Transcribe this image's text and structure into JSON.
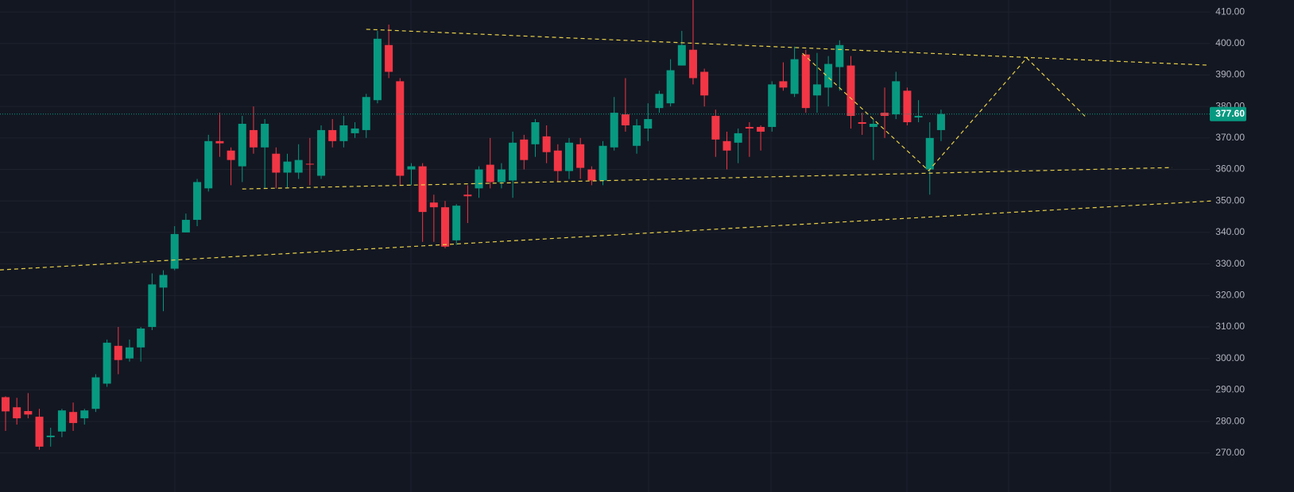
{
  "chart_data": {
    "type": "candlestick",
    "up_color": "#089981",
    "down_color": "#f23645",
    "open": [
      287.7,
      284.5,
      283.3,
      281.5,
      275,
      276.8,
      283,
      281,
      284,
      292,
      304,
      300,
      303.5,
      310,
      322.5,
      328.5,
      340,
      344,
      354,
      369,
      366,
      361,
      372.5,
      367,
      365,
      359,
      359,
      361.8,
      358,
      372.5,
      369,
      371.5,
      372.5,
      382,
      399.5,
      388,
      360,
      361,
      349.5,
      348,
      337.5,
      352,
      354,
      361.5,
      356,
      356.5,
      369.5,
      368,
      370.5,
      366,
      359.5,
      368,
      360,
      356.5,
      367,
      377.5,
      367.5,
      373,
      379.5,
      381,
      393,
      398,
      391,
      377,
      369,
      368.5,
      373.5,
      373.5,
      373.5,
      388,
      384,
      396.5,
      383.5,
      386,
      392.5,
      393,
      375,
      373.5,
      378,
      377.5,
      385,
      376.5,
      360,
      372.5
    ],
    "high": [
      288,
      287.5,
      289,
      284,
      278,
      284,
      286,
      284,
      295,
      306,
      310,
      306,
      310,
      327,
      328,
      342,
      346,
      357,
      371,
      378,
      367,
      377,
      380,
      376,
      367,
      365,
      368,
      370,
      374,
      376,
      377,
      375,
      384,
      404,
      406,
      389,
      362,
      362,
      352,
      350,
      349,
      355,
      361,
      370,
      362,
      372,
      371,
      376,
      374,
      368,
      370,
      370,
      361,
      369,
      383,
      389,
      376,
      381,
      385,
      395,
      404,
      414,
      392,
      379,
      372,
      373,
      375,
      374,
      388,
      394,
      399,
      398,
      397,
      396,
      401,
      396,
      378,
      376,
      386,
      391,
      386,
      382,
      375,
      379
    ],
    "low": [
      277,
      279,
      281,
      271,
      272,
      275,
      277,
      279,
      283,
      291,
      295,
      299,
      299,
      309,
      315,
      328,
      340,
      342,
      353,
      364,
      355,
      356,
      365,
      354,
      354,
      354,
      357,
      355,
      357,
      367,
      367,
      370,
      370,
      381,
      389,
      355,
      355,
      337,
      337,
      335,
      336,
      343,
      351,
      354,
      354,
      351,
      360,
      364,
      362,
      356,
      357,
      357,
      355,
      355,
      366,
      372,
      365,
      369,
      378,
      380,
      393,
      387,
      380,
      364,
      360,
      362,
      364,
      366,
      372,
      385,
      383,
      378,
      378,
      380,
      385,
      373,
      371,
      363,
      370,
      376,
      374,
      375,
      352,
      369
    ],
    "close": [
      283.2,
      281,
      282.2,
      272,
      275.5,
      283.5,
      279.5,
      283.5,
      294,
      305,
      299.5,
      303.5,
      309.5,
      323.5,
      326.5,
      339.5,
      344,
      356,
      369,
      368.3,
      363,
      374.5,
      367,
      374.5,
      359,
      362.5,
      363,
      361.6,
      372.5,
      369,
      374,
      373,
      383,
      401.5,
      391,
      358,
      361,
      346.5,
      348,
      335.5,
      348.5,
      351.5,
      360,
      356,
      360,
      368.5,
      363,
      375,
      365.5,
      359.5,
      368.5,
      360.5,
      356.5,
      367.5,
      378,
      374,
      374,
      376,
      384,
      391.5,
      399.5,
      389,
      383.5,
      369.5,
      366,
      371.5,
      373,
      372,
      387,
      386,
      395,
      379.5,
      387,
      393.5,
      399.5,
      377,
      374.5,
      374.5,
      377,
      388,
      375,
      377,
      370,
      377.6
    ],
    "ylim": [
      257.6,
      413.8
    ],
    "yticks": [
      {
        "value": 270,
        "label": "270.00"
      },
      {
        "value": 280,
        "label": "280.00"
      },
      {
        "value": 290,
        "label": "290.00"
      },
      {
        "value": 300,
        "label": "300.00"
      },
      {
        "value": 310,
        "label": "310.00"
      },
      {
        "value": 320,
        "label": "320.00"
      },
      {
        "value": 330,
        "label": "330.00"
      },
      {
        "value": 340,
        "label": "340.00"
      },
      {
        "value": 350,
        "label": "350.00"
      },
      {
        "value": 360,
        "label": "360.00"
      },
      {
        "value": 370,
        "label": "370.00"
      },
      {
        "value": 380,
        "label": "380.00"
      },
      {
        "value": 390,
        "label": "390.00"
      },
      {
        "value": 400,
        "label": "400.00"
      },
      {
        "value": 410,
        "label": "410.00"
      }
    ],
    "grid": true,
    "last_price": {
      "value": 377.6,
      "label": "377.60",
      "color": "#089981"
    },
    "trendline_color": "#e8d04a",
    "trendlines": [
      {
        "x": [
          32.0,
          106.8
        ],
        "y": [
          404.5,
          393.1
        ]
      },
      {
        "x": [
          21.0,
          103.5
        ],
        "y": [
          353.8,
          360.6
        ]
      },
      {
        "x": [
          -0.5,
          107.0
        ],
        "y": [
          328.1,
          350.0
        ]
      },
      {
        "x": [
          70.7,
          81.9,
          90.6,
          95.8
        ],
        "y": [
          396.9,
          359.6,
          395.4,
          376.8
        ]
      }
    ]
  }
}
